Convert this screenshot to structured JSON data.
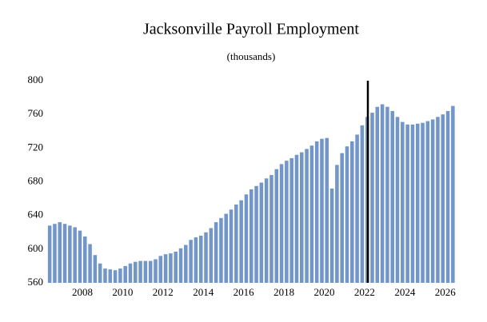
{
  "chart_data": {
    "type": "bar",
    "title": "Jacksonville Payroll Employment",
    "subtitle": "(thousands)",
    "categories": [
      null,
      null,
      null,
      null,
      null,
      null,
      "2008",
      null,
      null,
      null,
      null,
      null,
      null,
      null,
      "2010",
      null,
      null,
      null,
      null,
      null,
      null,
      null,
      "2012",
      null,
      null,
      null,
      null,
      null,
      null,
      null,
      "2014",
      null,
      null,
      null,
      null,
      null,
      null,
      null,
      "2016",
      null,
      null,
      null,
      null,
      null,
      null,
      null,
      "2018",
      null,
      null,
      null,
      null,
      null,
      null,
      null,
      "2020",
      null,
      null,
      null,
      null,
      null,
      null,
      null,
      "2022",
      null,
      null,
      null,
      null,
      null,
      null,
      null,
      "2024",
      null,
      null,
      null,
      null,
      null,
      null,
      null,
      "2026",
      null,
      null
    ],
    "values": [
      628,
      630,
      632,
      630,
      628,
      626,
      622,
      615,
      606,
      593,
      583,
      577,
      576,
      575,
      577,
      580,
      583,
      585,
      586,
      586,
      586,
      588,
      592,
      594,
      595,
      597,
      601,
      605,
      611,
      614,
      616,
      620,
      625,
      632,
      637,
      642,
      647,
      653,
      658,
      665,
      671,
      675,
      679,
      684,
      688,
      695,
      701,
      705,
      708,
      712,
      715,
      719,
      723,
      728,
      731,
      732,
      672,
      700,
      714,
      722,
      728,
      736,
      747,
      757,
      762,
      769,
      772,
      769,
      764,
      757,
      751,
      748,
      748,
      749,
      750,
      752,
      754,
      757,
      760,
      764,
      770
    ],
    "color": "#7396c8",
    "ylim": [
      560,
      800
    ],
    "yticks": [
      560,
      600,
      640,
      680,
      720,
      760,
      800
    ],
    "grid": false
  }
}
